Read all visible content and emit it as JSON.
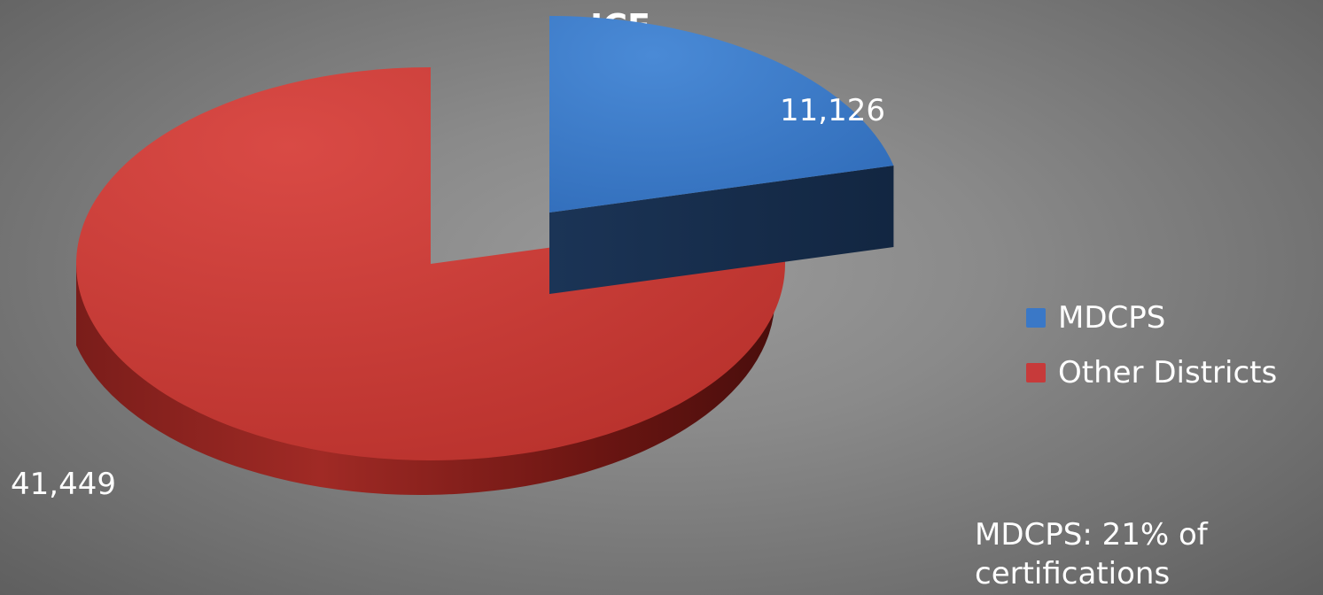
{
  "chart_data": {
    "type": "pie",
    "title": "ICE",
    "categories": [
      "MDCPS",
      "Other Districts"
    ],
    "values": [
      11126,
      41449
    ],
    "value_labels": [
      "11,126",
      "41,449"
    ],
    "colors": [
      "#3a78c7",
      "#c73a3a"
    ],
    "legend_position": "right",
    "exploded": "MDCPS",
    "style": "3d",
    "annotation": "MDCPS: 21% of certifications"
  }
}
